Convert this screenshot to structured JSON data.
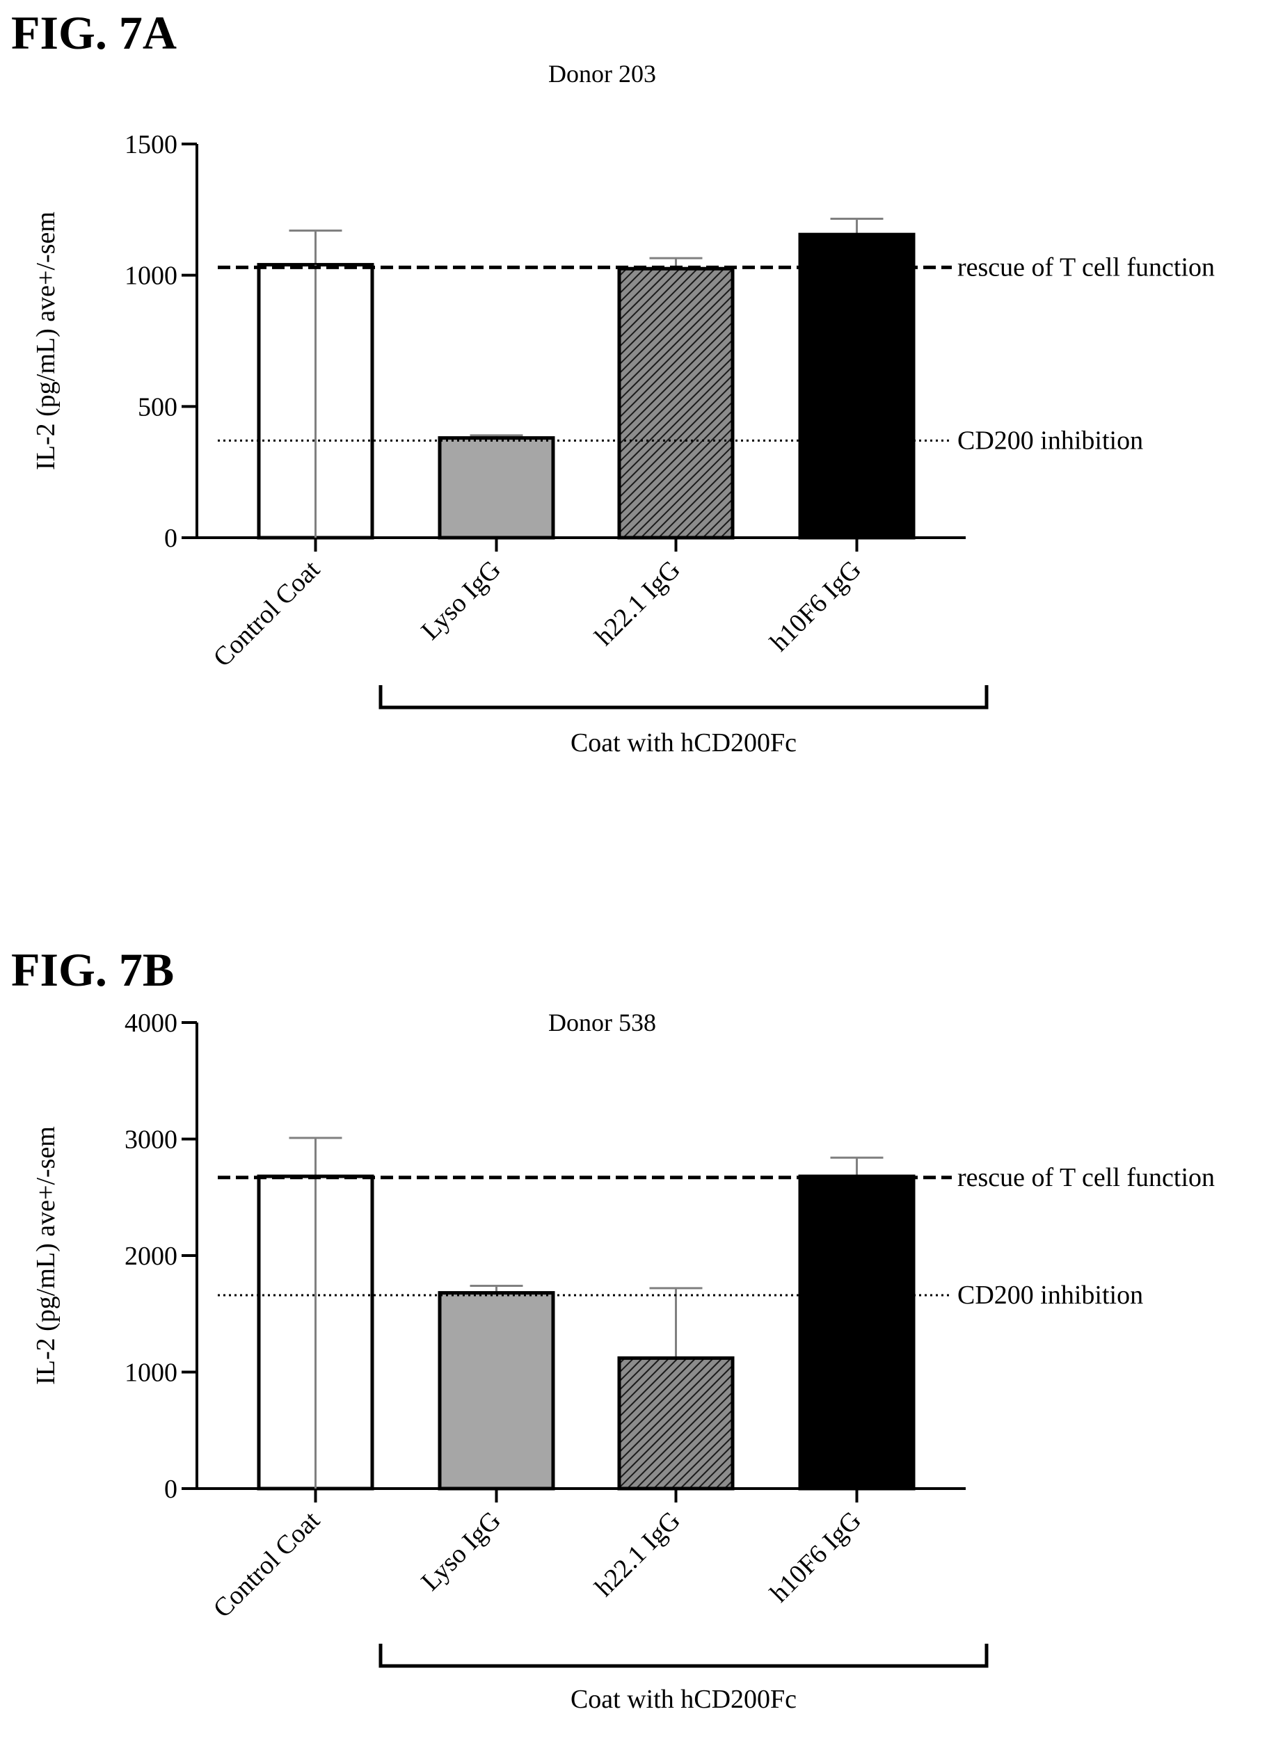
{
  "figures": [
    {
      "label": "FIG. 7A"
    },
    {
      "label": "FIG. 7B"
    }
  ],
  "chart_data": [
    {
      "type": "bar",
      "title": "Donor 203",
      "ylabel": "IL-2 (pg/mL) ave+/-sem",
      "xlabel": "",
      "ylim": [
        0,
        1500
      ],
      "yticks": [
        0,
        500,
        1000,
        1500
      ],
      "categories": [
        "Control Coat",
        "Lyso IgG",
        "h22.1 IgG",
        "h10F6 IgG"
      ],
      "values": [
        1040,
        380,
        1025,
        1155
      ],
      "errors": [
        130,
        10,
        40,
        60
      ],
      "fills": [
        "white",
        "#a6a6a6",
        "hatch",
        "#000000"
      ],
      "reference_lines": [
        {
          "label": "rescue of T cell function",
          "value": 1030,
          "style": "dashed"
        },
        {
          "label": "CD200 inhibition",
          "value": 370,
          "style": "dotted"
        }
      ],
      "group_bracket": {
        "label": "Coat with hCD200Fc",
        "from": 1,
        "to": 3
      }
    },
    {
      "type": "bar",
      "title": "Donor 538",
      "ylabel": "IL-2 (pg/mL) ave+/-sem",
      "xlabel": "",
      "ylim": [
        0,
        4000
      ],
      "yticks": [
        0,
        1000,
        2000,
        3000,
        4000
      ],
      "categories": [
        "Control Coat",
        "Lyso IgG",
        "h22.1 IgG",
        "h10F6 IgG"
      ],
      "values": [
        2680,
        1680,
        1120,
        2680
      ],
      "errors": [
        330,
        60,
        600,
        160
      ],
      "fills": [
        "white",
        "#a6a6a6",
        "hatch",
        "#000000"
      ],
      "reference_lines": [
        {
          "label": "rescue of T cell function",
          "value": 2670,
          "style": "dashed"
        },
        {
          "label": "CD200 inhibition",
          "value": 1660,
          "style": "dotted"
        }
      ],
      "group_bracket": {
        "label": "Coat with hCD200Fc",
        "from": 1,
        "to": 3
      }
    }
  ]
}
